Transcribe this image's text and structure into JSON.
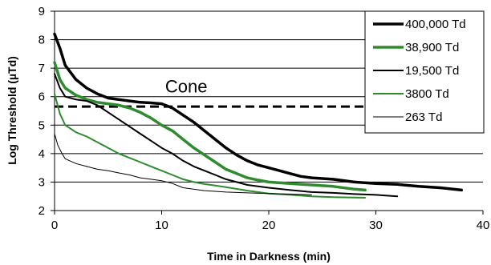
{
  "chart_data": {
    "type": "line",
    "xlabel": "Time in Darkness (min)",
    "ylabel": "Log Threshold (µTd)",
    "xlim": [
      0,
      40
    ],
    "ylim": [
      2,
      9
    ],
    "xticks": [
      "0",
      "10",
      "20",
      "30",
      "40"
    ],
    "yticks": [
      "2",
      "3",
      "4",
      "5",
      "6",
      "7",
      "8",
      "9"
    ],
    "grid": "horizontal",
    "legend_position": "top-right",
    "annotation": {
      "text": "Cone",
      "x": 12.3,
      "y": 6.15
    },
    "reference_line": {
      "y": 5.65,
      "x_start": 0,
      "x_end": 30,
      "style": "dashed",
      "color": "#000000"
    },
    "series": [
      {
        "name": "400,000 Td",
        "color": "#000000",
        "width": 3.5,
        "x": [
          0,
          0.5,
          1,
          2,
          3,
          4,
          5,
          6,
          7,
          8,
          9,
          10,
          11,
          12,
          13,
          14,
          15,
          16,
          17,
          18,
          19,
          20,
          21,
          22,
          23,
          24,
          26,
          28,
          30,
          32,
          34,
          36,
          38
        ],
        "y": [
          8.2,
          7.7,
          7.1,
          6.6,
          6.3,
          6.1,
          5.95,
          5.9,
          5.85,
          5.8,
          5.78,
          5.75,
          5.6,
          5.35,
          5.1,
          4.8,
          4.5,
          4.2,
          3.95,
          3.75,
          3.6,
          3.5,
          3.4,
          3.3,
          3.2,
          3.15,
          3.1,
          3.0,
          2.95,
          2.92,
          2.85,
          2.8,
          2.72
        ]
      },
      {
        "name": "38,900 Td",
        "color": "#2e8b2e",
        "width": 3.5,
        "x": [
          0,
          0.5,
          1,
          2,
          3,
          4,
          5,
          6,
          7,
          8,
          9,
          10,
          11,
          12,
          13,
          14,
          15,
          16,
          17,
          18,
          19,
          20,
          22,
          24,
          26,
          28,
          29
        ],
        "y": [
          7.2,
          6.6,
          6.3,
          6.05,
          5.9,
          5.8,
          5.75,
          5.7,
          5.6,
          5.45,
          5.25,
          5.0,
          4.8,
          4.5,
          4.2,
          3.95,
          3.7,
          3.45,
          3.3,
          3.15,
          3.07,
          3.0,
          2.95,
          2.9,
          2.85,
          2.75,
          2.72
        ]
      },
      {
        "name": "19,500 Td",
        "color": "#000000",
        "width": 2,
        "x": [
          0,
          0.5,
          1,
          2,
          3,
          4,
          5,
          6,
          7,
          8,
          9,
          10,
          11,
          12,
          13,
          14,
          15,
          16,
          17,
          18,
          20,
          22,
          24,
          26,
          28,
          30,
          32
        ],
        "y": [
          6.8,
          6.3,
          6.0,
          5.9,
          5.85,
          5.7,
          5.45,
          5.2,
          4.95,
          4.7,
          4.45,
          4.2,
          4.0,
          3.75,
          3.55,
          3.4,
          3.25,
          3.1,
          3.0,
          2.9,
          2.8,
          2.72,
          2.65,
          2.62,
          2.58,
          2.55,
          2.5
        ]
      },
      {
        "name": "3800 Td",
        "color": "#2e8b2e",
        "width": 2,
        "x": [
          0,
          0.5,
          1,
          2,
          3,
          4,
          5,
          6,
          7,
          8,
          9,
          10,
          11,
          12,
          13,
          14,
          15,
          16,
          18,
          20,
          22,
          24,
          26,
          29
        ],
        "y": [
          6.1,
          5.4,
          5.0,
          4.75,
          4.6,
          4.4,
          4.2,
          4.0,
          3.85,
          3.7,
          3.55,
          3.4,
          3.25,
          3.1,
          3.0,
          2.93,
          2.88,
          2.82,
          2.7,
          2.6,
          2.55,
          2.5,
          2.47,
          2.45
        ]
      },
      {
        "name": "263 Td",
        "color": "#000000",
        "width": 1,
        "x": [
          0,
          0.3,
          0.7,
          1,
          2,
          3,
          4,
          5,
          6,
          7,
          8,
          9,
          10,
          11,
          12,
          14,
          16,
          18,
          20,
          22,
          24
        ],
        "y": [
          4.7,
          4.3,
          4.0,
          3.82,
          3.65,
          3.55,
          3.45,
          3.4,
          3.32,
          3.25,
          3.15,
          3.1,
          3.05,
          2.95,
          2.8,
          2.7,
          2.65,
          2.62,
          2.6,
          2.58,
          2.55
        ]
      }
    ]
  }
}
